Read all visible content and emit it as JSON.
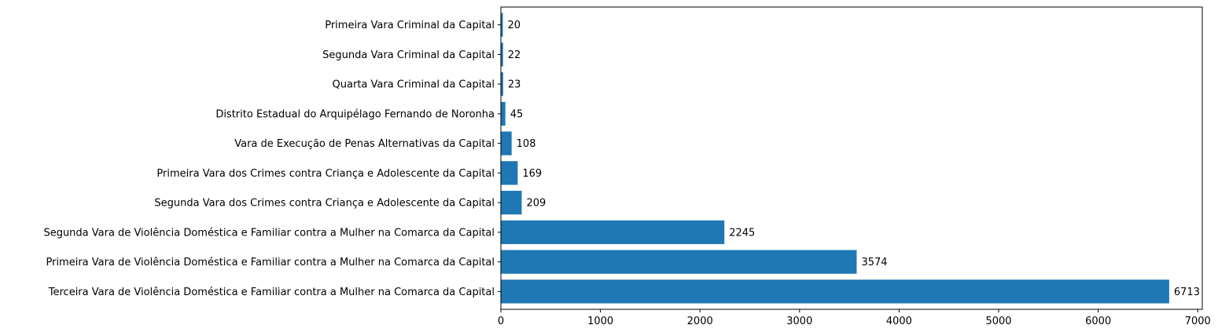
{
  "chart_data": {
    "type": "bar",
    "orientation": "horizontal",
    "title": "",
    "xlabel": "",
    "ylabel": "",
    "categories": [
      "Terceira Vara de Violência Doméstica e Familiar contra a Mulher na Comarca da Capital",
      "Primeira Vara de Violência Doméstica e Familiar contra a Mulher na Comarca da Capital",
      "Segunda Vara de Violência Doméstica e Familiar contra a Mulher na Comarca da Capital",
      "Segunda Vara dos Crimes contra Criança e Adolescente da Capital",
      "Primeira Vara dos Crimes contra Criança e Adolescente da Capital",
      "Vara de Execução de Penas Alternativas da Capital",
      "Distrito Estadual do Arquipélago Fernando de Noronha",
      "Quarta Vara Criminal da Capital",
      "Segunda Vara Criminal da Capital",
      "Primeira Vara Criminal da Capital"
    ],
    "values": [
      6713,
      3574,
      2245,
      209,
      169,
      108,
      45,
      23,
      22,
      20
    ],
    "xlim": [
      0,
      7000
    ],
    "xticks": [
      0,
      1000,
      2000,
      3000,
      4000,
      5000,
      6000,
      7000
    ],
    "bar_color": "#1f77b4",
    "grid": false,
    "legend": "none"
  }
}
